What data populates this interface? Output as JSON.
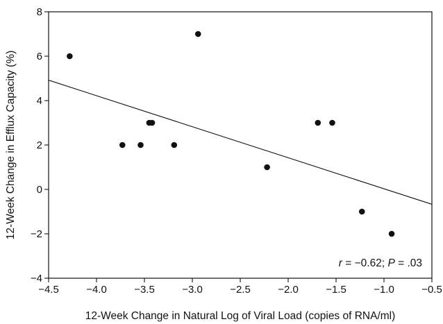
{
  "chart_data": {
    "type": "scatter",
    "title": "",
    "xlabel": "12-Week Change in Natural Log of Viral Load (copies of RNA/ml)",
    "ylabel": "12-Week Change in Efflux Capacity (%)",
    "xlim": [
      -4.5,
      -0.5
    ],
    "ylim": [
      -4,
      8
    ],
    "xticks": [
      -4.5,
      -4.0,
      -3.5,
      -3.0,
      -2.5,
      -2.0,
      -1.5,
      -1.0,
      -0.5
    ],
    "xtick_labels": [
      "−4.5",
      "−4.0",
      "−3.5",
      "−3.0",
      "−2.5",
      "−2.0",
      "−1.5",
      "−1.0",
      "−0.5"
    ],
    "yticks": [
      -4,
      -2,
      0,
      2,
      4,
      6,
      8
    ],
    "ytick_labels": [
      "−4",
      "−2",
      "0",
      "2",
      "4",
      "6",
      "8"
    ],
    "grid": false,
    "points": [
      {
        "x": -4.28,
        "y": 6
      },
      {
        "x": -3.73,
        "y": 2
      },
      {
        "x": -3.54,
        "y": 2
      },
      {
        "x": -3.45,
        "y": 3
      },
      {
        "x": -3.42,
        "y": 3
      },
      {
        "x": -3.19,
        "y": 2
      },
      {
        "x": -2.94,
        "y": 7
      },
      {
        "x": -2.22,
        "y": 1
      },
      {
        "x": -1.69,
        "y": 3
      },
      {
        "x": -1.54,
        "y": 3
      },
      {
        "x": -1.23,
        "y": -1
      },
      {
        "x": -0.92,
        "y": -2
      }
    ],
    "regression_line": {
      "x": [
        -4.5,
        -0.5
      ],
      "y": [
        4.92,
        -0.67
      ]
    },
    "annotation": {
      "r_symbol": "r",
      "r_text": " = −0.62; ",
      "p_symbol": "P",
      "p_text": " = .03"
    }
  }
}
